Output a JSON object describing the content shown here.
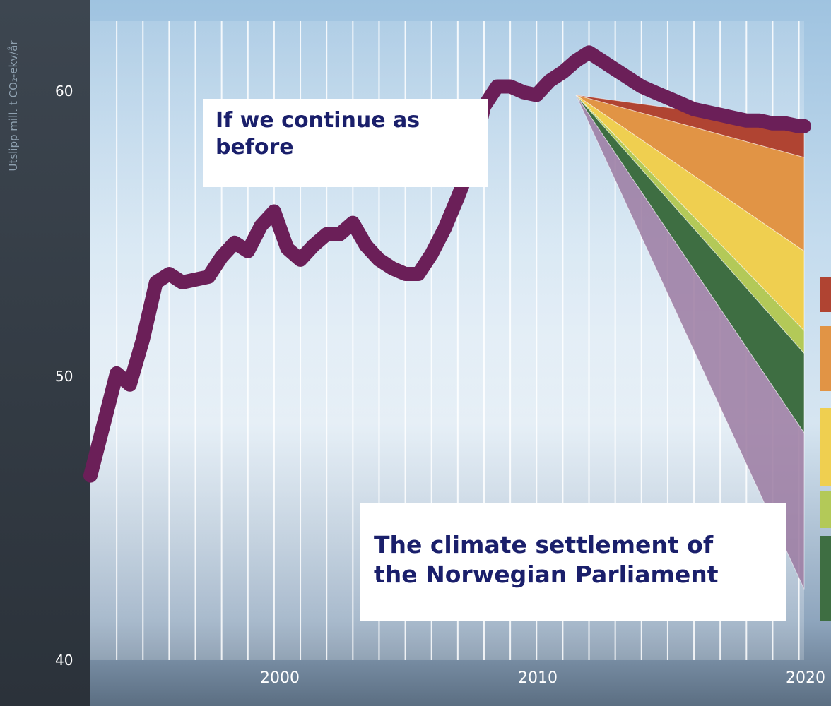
{
  "chart_data": {
    "type": "line",
    "title": "",
    "ylabel": "Utslipp mill. t CO₂-ekv/år",
    "xlabel": "",
    "xlim": [
      1993,
      2020.2
    ],
    "ylim": [
      40,
      62.5
    ],
    "yticks": [
      "40",
      "50",
      "60"
    ],
    "xticks": [
      "2000",
      "2010",
      "2020"
    ],
    "grid": "vertical lines every year",
    "series": [
      {
        "x": [
          1993.0,
          1993.5,
          1994.0,
          1994.5,
          1995.0,
          1995.5,
          1996.0,
          1996.5,
          1997.0,
          1997.5,
          1998.0,
          1998.5,
          1999.0,
          1999.5,
          2000.0,
          2000.5,
          2001.0,
          2001.5,
          2002.0,
          2002.5,
          2003.0,
          2003.5,
          2004.0,
          2004.5,
          2005.0,
          2005.5,
          2006.0,
          2006.5,
          2007.0,
          2007.5,
          2008.0,
          2008.5,
          2009.0,
          2009.5,
          2010.0,
          2010.5,
          2011.0,
          2011.5,
          2012.0,
          2012.5,
          2013.0,
          2013.5,
          2014.0,
          2014.5,
          2015.0,
          2015.5,
          2016.0,
          2016.5,
          2017.0,
          2017.5,
          2018.0,
          2018.5,
          2019.0,
          2019.5,
          2020.0,
          2020.2
        ],
        "values": [
          46.5,
          48.3,
          50.1,
          49.7,
          51.3,
          53.3,
          53.6,
          53.3,
          53.4,
          53.5,
          54.2,
          54.7,
          54.4,
          55.3,
          55.8,
          54.5,
          54.1,
          54.6,
          55.0,
          55.0,
          55.4,
          54.6,
          54.1,
          53.8,
          53.6,
          53.6,
          54.3,
          55.2,
          56.3,
          57.5,
          59.5,
          60.2,
          60.2,
          60.0,
          59.9,
          60.4,
          60.7,
          61.1,
          61.4,
          61.1,
          60.8,
          60.5,
          60.2,
          60.0,
          59.8,
          59.6,
          59.4,
          59.3,
          59.2,
          59.1,
          59.0,
          59.0,
          58.9,
          58.9,
          58.8,
          58.8
        ]
      }
    ],
    "wedges_from": {
      "x": 2011.5,
      "y": 59.9
    },
    "wedge_bounds_2020": [
      58.8,
      57.7,
      54.4,
      51.6,
      50.8,
      48.0,
      42.5
    ],
    "wedge_colors": [
      "#b04432",
      "#e19445",
      "#efcf50",
      "#b3c958",
      "#3e6e42",
      "#9b7aa1"
    ],
    "legend_swatch_colors": [
      "#b04432",
      "#e19445",
      "#efcf50",
      "#b3c958",
      "#3e6e42"
    ],
    "line_color": "#6b1f58",
    "annotations": [
      "If we continue as before",
      "The climate settlement of the Norwegian Parliament"
    ]
  },
  "labels": {
    "annot_bau_l1": "If we continue as",
    "annot_bau_l2": "before",
    "annot_settle_l1": "The climate settlement of",
    "annot_settle_l2": "the Norwegian Parliament"
  }
}
